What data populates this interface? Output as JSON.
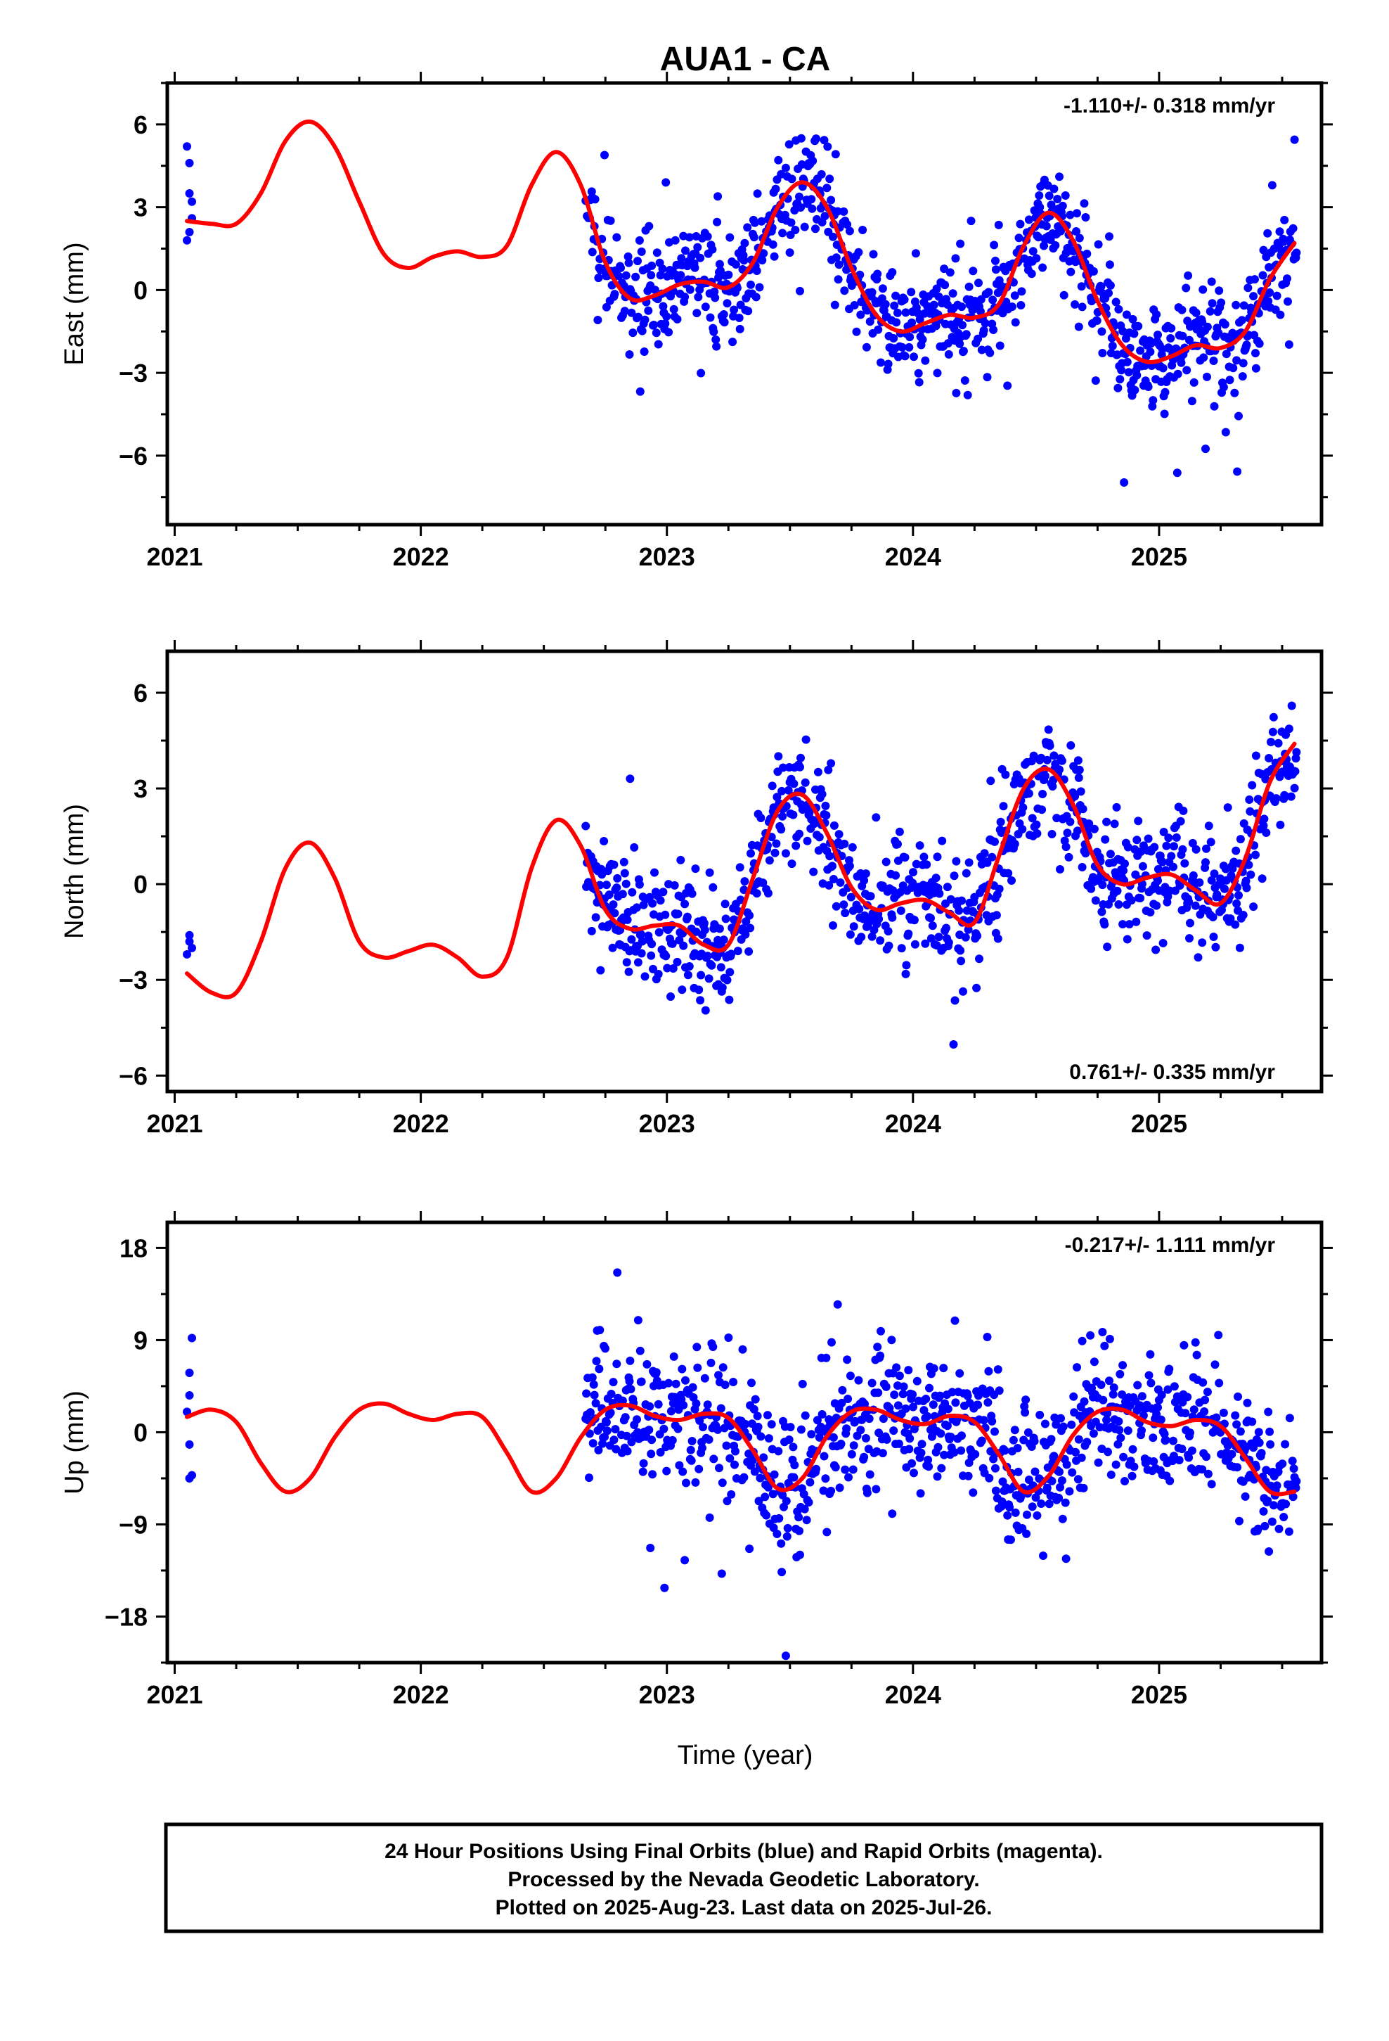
{
  "title": "AUA1 - CA",
  "x_axis_label": "Time (year)",
  "footer": {
    "lines": [
      "24 Hour Positions Using Final Orbits (blue) and Rapid Orbits (magenta).",
      "Processed by the Nevada Geodetic Laboratory.",
      "Plotted on 2025-Aug-23. Last data on 2025-Jul-26."
    ]
  },
  "colors": {
    "points": "#0000ff",
    "fit": "#ff0000",
    "frame": "#000000"
  },
  "chart_data": [
    {
      "type": "scatter",
      "id": "east",
      "ylabel": "East (mm)",
      "rate_text": "-1.110+/- 0.318 mm/yr",
      "rate_position": "top-right",
      "xlim": [
        2020.97,
        2025.66
      ],
      "ylim": [
        -8.5,
        7.5
      ],
      "xticks": [
        2021,
        2022,
        2023,
        2024,
        2025
      ],
      "yticks": [
        6,
        3,
        0,
        -3,
        -6
      ],
      "ytick_labels": [
        "6",
        "3",
        "0",
        "−3",
        "−6"
      ],
      "data_start": 2022.67,
      "data_end": 2025.56,
      "early_points": [
        [
          2021.05,
          5.2
        ],
        [
          2021.06,
          4.6
        ],
        [
          2021.06,
          3.5
        ],
        [
          2021.07,
          3.2
        ],
        [
          2021.05,
          1.8
        ],
        [
          2021.06,
          2.1
        ],
        [
          2021.07,
          2.6
        ]
      ],
      "seasonal_fit": [
        [
          2021.05,
          2.5
        ],
        [
          2021.15,
          2.4
        ],
        [
          2021.25,
          2.4
        ],
        [
          2021.35,
          3.5
        ],
        [
          2021.45,
          5.4
        ],
        [
          2021.55,
          6.1
        ],
        [
          2021.65,
          5.2
        ],
        [
          2021.75,
          3.2
        ],
        [
          2021.85,
          1.3
        ],
        [
          2021.95,
          0.8
        ],
        [
          2022.05,
          1.2
        ],
        [
          2022.15,
          1.4
        ],
        [
          2022.25,
          1.2
        ],
        [
          2022.35,
          1.6
        ],
        [
          2022.45,
          3.8
        ],
        [
          2022.55,
          5.0
        ],
        [
          2022.65,
          3.8
        ],
        [
          2022.75,
          1.0
        ],
        [
          2022.85,
          -0.3
        ],
        [
          2022.95,
          -0.2
        ],
        [
          2023.05,
          0.2
        ],
        [
          2023.15,
          0.3
        ],
        [
          2023.25,
          0.1
        ],
        [
          2023.35,
          1.0
        ],
        [
          2023.45,
          3.0
        ],
        [
          2023.55,
          3.9
        ],
        [
          2023.65,
          3.0
        ],
        [
          2023.75,
          0.8
        ],
        [
          2023.85,
          -0.9
        ],
        [
          2023.95,
          -1.5
        ],
        [
          2024.05,
          -1.2
        ],
        [
          2024.15,
          -0.9
        ],
        [
          2024.25,
          -1.0
        ],
        [
          2024.35,
          -0.5
        ],
        [
          2024.45,
          1.6
        ],
        [
          2024.55,
          2.8
        ],
        [
          2024.65,
          1.8
        ],
        [
          2024.75,
          -0.4
        ],
        [
          2024.85,
          -2.0
        ],
        [
          2024.95,
          -2.6
        ],
        [
          2025.05,
          -2.4
        ],
        [
          2025.15,
          -2.0
        ],
        [
          2025.25,
          -2.1
        ],
        [
          2025.35,
          -1.5
        ],
        [
          2025.45,
          0.4
        ],
        [
          2025.55,
          1.7
        ]
      ],
      "seasonal_amplitude": 2.0,
      "seasonal_phase": 2023.55,
      "noise_sigma": 1.15
    },
    {
      "type": "scatter",
      "id": "north",
      "ylabel": "North (mm)",
      "rate_text": "0.761+/- 0.335 mm/yr",
      "rate_position": "bottom-right",
      "xlim": [
        2020.97,
        2025.66
      ],
      "ylim": [
        -6.5,
        7.3
      ],
      "xticks": [
        2021,
        2022,
        2023,
        2024,
        2025
      ],
      "yticks": [
        6,
        3,
        0,
        -3,
        -6
      ],
      "ytick_labels": [
        "6",
        "3",
        "0",
        "−3",
        "−6"
      ],
      "data_start": 2022.67,
      "data_end": 2025.56,
      "early_points": [
        [
          2021.06,
          -1.6
        ],
        [
          2021.06,
          -1.8
        ],
        [
          2021.07,
          -2.0
        ],
        [
          2021.05,
          -2.2
        ]
      ],
      "seasonal_fit": [
        [
          2021.05,
          -2.8
        ],
        [
          2021.15,
          -3.4
        ],
        [
          2021.25,
          -3.4
        ],
        [
          2021.35,
          -1.8
        ],
        [
          2021.45,
          0.5
        ],
        [
          2021.55,
          1.3
        ],
        [
          2021.65,
          0.2
        ],
        [
          2021.75,
          -1.8
        ],
        [
          2021.85,
          -2.3
        ],
        [
          2021.95,
          -2.1
        ],
        [
          2022.05,
          -1.9
        ],
        [
          2022.15,
          -2.3
        ],
        [
          2022.25,
          -2.9
        ],
        [
          2022.35,
          -2.3
        ],
        [
          2022.45,
          0.5
        ],
        [
          2022.55,
          2.0
        ],
        [
          2022.65,
          1.2
        ],
        [
          2022.75,
          -0.8
        ],
        [
          2022.85,
          -1.4
        ],
        [
          2022.95,
          -1.3
        ],
        [
          2023.05,
          -1.3
        ],
        [
          2023.15,
          -1.9
        ],
        [
          2023.25,
          -1.9
        ],
        [
          2023.35,
          0.2
        ],
        [
          2023.45,
          2.3
        ],
        [
          2023.55,
          2.8
        ],
        [
          2023.65,
          1.6
        ],
        [
          2023.75,
          -0.1
        ],
        [
          2023.85,
          -0.8
        ],
        [
          2023.95,
          -0.6
        ],
        [
          2024.05,
          -0.5
        ],
        [
          2024.15,
          -0.9
        ],
        [
          2024.25,
          -1.2
        ],
        [
          2024.35,
          0.9
        ],
        [
          2024.45,
          3.0
        ],
        [
          2024.55,
          3.6
        ],
        [
          2024.65,
          2.5
        ],
        [
          2024.75,
          0.6
        ],
        [
          2024.85,
          0.0
        ],
        [
          2024.95,
          0.2
        ],
        [
          2025.05,
          0.3
        ],
        [
          2025.15,
          -0.2
        ],
        [
          2025.25,
          -0.6
        ],
        [
          2025.35,
          0.8
        ],
        [
          2025.45,
          3.2
        ],
        [
          2025.55,
          4.4
        ]
      ],
      "seasonal_amplitude": 1.9,
      "seasonal_phase": 2023.58,
      "noise_sigma": 1.05
    },
    {
      "type": "scatter",
      "id": "up",
      "ylabel": "Up (mm)",
      "rate_text": "-0.217+/- 1.111 mm/yr",
      "rate_position": "top-right",
      "xlim": [
        2020.97,
        2025.66
      ],
      "ylim": [
        -22.5,
        20.5
      ],
      "xticks": [
        2021,
        2022,
        2023,
        2024,
        2025
      ],
      "yticks": [
        18,
        9,
        0,
        -9,
        -18
      ],
      "ytick_labels": [
        "18",
        "9",
        "0",
        "−9",
        "−18"
      ],
      "data_start": 2022.67,
      "data_end": 2025.56,
      "early_points": [
        [
          2021.07,
          9.2
        ],
        [
          2021.06,
          5.8
        ],
        [
          2021.06,
          3.6
        ],
        [
          2021.05,
          2.0
        ],
        [
          2021.06,
          -1.2
        ],
        [
          2021.07,
          -4.2
        ],
        [
          2021.06,
          -4.5
        ]
      ],
      "seasonal_fit": [
        [
          2021.05,
          1.5
        ],
        [
          2021.15,
          2.2
        ],
        [
          2021.25,
          1.0
        ],
        [
          2021.35,
          -3.0
        ],
        [
          2021.45,
          -5.8
        ],
        [
          2021.55,
          -4.5
        ],
        [
          2021.65,
          -0.5
        ],
        [
          2021.75,
          2.2
        ],
        [
          2021.85,
          2.8
        ],
        [
          2021.95,
          1.8
        ],
        [
          2022.05,
          1.2
        ],
        [
          2022.15,
          1.8
        ],
        [
          2022.25,
          1.5
        ],
        [
          2022.35,
          -2.0
        ],
        [
          2022.45,
          -5.8
        ],
        [
          2022.55,
          -4.5
        ],
        [
          2022.65,
          -0.5
        ],
        [
          2022.75,
          2.2
        ],
        [
          2022.85,
          2.6
        ],
        [
          2022.95,
          1.6
        ],
        [
          2023.05,
          1.2
        ],
        [
          2023.15,
          1.8
        ],
        [
          2023.25,
          1.4
        ],
        [
          2023.35,
          -1.8
        ],
        [
          2023.45,
          -5.5
        ],
        [
          2023.55,
          -4.5
        ],
        [
          2023.65,
          -0.4
        ],
        [
          2023.75,
          2.0
        ],
        [
          2023.85,
          2.2
        ],
        [
          2023.95,
          1.2
        ],
        [
          2024.05,
          0.8
        ],
        [
          2024.15,
          1.6
        ],
        [
          2024.25,
          1.0
        ],
        [
          2024.35,
          -2.2
        ],
        [
          2024.45,
          -5.8
        ],
        [
          2024.55,
          -4.3
        ],
        [
          2024.65,
          -0.3
        ],
        [
          2024.75,
          2.0
        ],
        [
          2024.85,
          2.2
        ],
        [
          2024.95,
          1.0
        ],
        [
          2025.05,
          0.6
        ],
        [
          2025.15,
          1.2
        ],
        [
          2025.25,
          0.6
        ],
        [
          2025.35,
          -2.5
        ],
        [
          2025.45,
          -5.8
        ],
        [
          2025.55,
          -5.8
        ]
      ],
      "seasonal_amplitude": 4.0,
      "seasonal_phase": 2023.9,
      "noise_sigma": 3.9
    }
  ]
}
